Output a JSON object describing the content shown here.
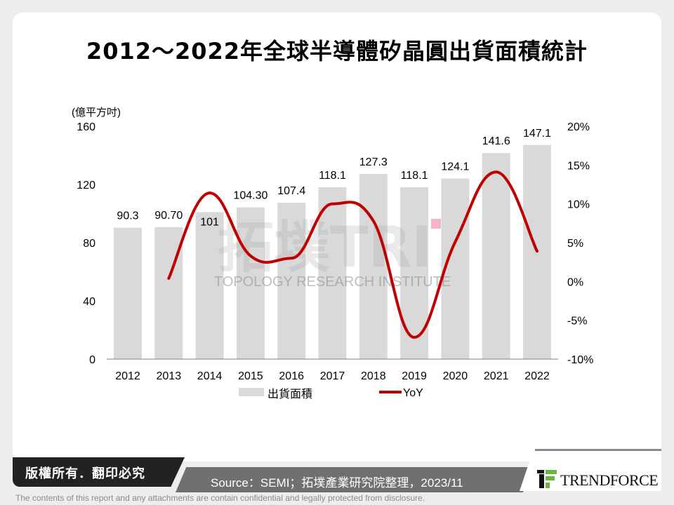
{
  "title": "2012～2022年全球半導體矽晶圓出貨面積統計",
  "chart_data": {
    "type": "bar+line",
    "title": "2012～2022年全球半導體矽晶圓出貨面積統計",
    "ylabel_left": "(億平方吋)",
    "categories": [
      "2012",
      "2013",
      "2014",
      "2015",
      "2016",
      "2017",
      "2018",
      "2019",
      "2020",
      "2021",
      "2022"
    ],
    "left_axis": {
      "ylim": [
        0,
        160
      ],
      "ticks": [
        "0",
        "40",
        "80",
        "120",
        "160"
      ]
    },
    "right_axis": {
      "ylim": [
        -10,
        20
      ],
      "ticks": [
        "-10%",
        "-5%",
        "0%",
        "5%",
        "10%",
        "15%",
        "20%"
      ]
    },
    "series": [
      {
        "name": "出貨面積",
        "type": "bar",
        "axis": "left",
        "color": "#d9d9d9",
        "values": [
          90.3,
          90.7,
          101,
          104.3,
          107.4,
          118.1,
          127.3,
          118.1,
          124.1,
          141.6,
          147.1
        ],
        "labels": [
          "90.3",
          "90.70",
          "101",
          "104.30",
          "107.4",
          "118.1",
          "127.3",
          "118.1",
          "124.1",
          "141.6",
          "147.1"
        ]
      },
      {
        "name": "YoY",
        "type": "line",
        "axis": "right",
        "color": "#c00000",
        "smooth": true,
        "values": [
          null,
          0.4,
          11.4,
          3.3,
          3.0,
          10.0,
          7.8,
          -7.2,
          5.1,
          14.1,
          3.9
        ]
      }
    ],
    "legend": "bottom",
    "grid": false
  },
  "watermark": {
    "main": "拓墣TRI",
    "sub": "TOPOLOGY RESEARCH INSTITUTE"
  },
  "footer": {
    "copyright": "版權所有．翻印必究",
    "source": "Source：SEMI；拓墣產業研究院整理，2023/11",
    "logo": "TRENDFORCE",
    "disclaimer": "The contents of this report and any attachments are contain confidential and legally protected from disclosure."
  }
}
